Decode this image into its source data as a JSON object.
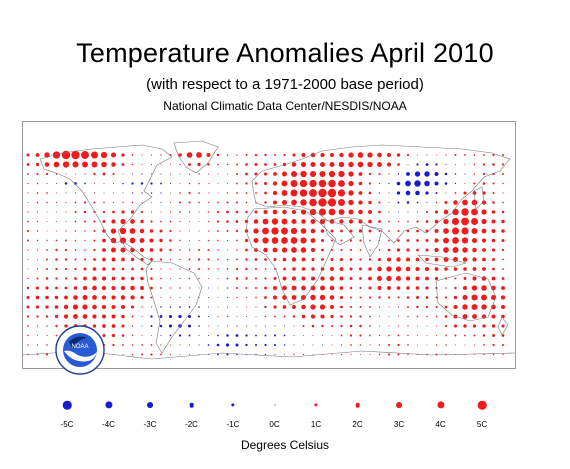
{
  "title": "Temperature Anomalies April 2010",
  "subtitle": "(with respect to a 1971-2000 base period)",
  "source": "National Climatic Data Center/NESDIS/NOAA",
  "logo": {
    "text": "NOAA",
    "ring_text": "NATIONAL OCEANIC AND ATMOSPHERIC ADMINISTRATION · U.S. DEPARTMENT OF COMMERCE"
  },
  "colors": {
    "warm": "#ee1c1c",
    "cool": "#1a1ad0",
    "neutral": "#000000",
    "coast": "#777777",
    "frame": "#999999"
  },
  "legend": {
    "items": [
      {
        "label": "-5C",
        "value": -5
      },
      {
        "label": "-4C",
        "value": -4
      },
      {
        "label": "-3C",
        "value": -3
      },
      {
        "label": "-2C",
        "value": -2
      },
      {
        "label": "-1C",
        "value": -1
      },
      {
        "label": "0C",
        "value": 0
      },
      {
        "label": "1C",
        "value": 1
      },
      {
        "label": "2C",
        "value": 2
      },
      {
        "label": "3C",
        "value": 3
      },
      {
        "label": "4C",
        "value": 4
      },
      {
        "label": "5C",
        "value": 5
      }
    ],
    "units": "Degrees Celsius"
  }
}
